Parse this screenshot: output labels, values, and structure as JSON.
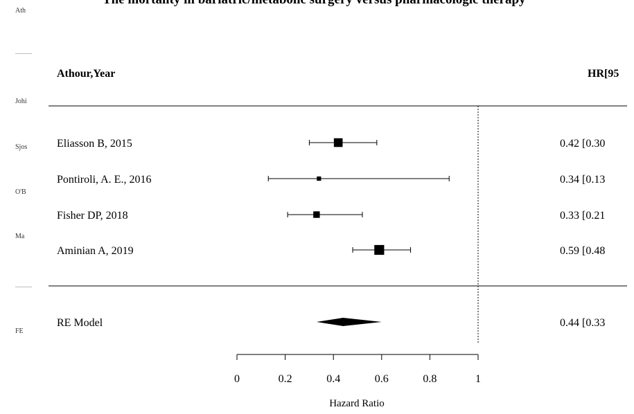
{
  "left_panel": {
    "labels": [
      "Ath",
      "Johi",
      "Sjos",
      "O'B",
      "Ma",
      "FE"
    ]
  },
  "chart_data": {
    "type": "forest",
    "title": "The mortality in bariatric/metabolic surgery versus pharmacologic therapy",
    "col_study_header": "Athour,Year",
    "col_effect_header": "HR[95",
    "xlabel": "Hazard Ratio",
    "xlim": [
      0,
      1
    ],
    "xticks": [
      0,
      0.2,
      0.4,
      0.6,
      0.8,
      1
    ],
    "xtick_labels": [
      "0",
      "0.2",
      "0.4",
      "0.6",
      "0.8",
      "1"
    ],
    "reference_line": 1,
    "studies": [
      {
        "label": "Eliasson B, 2015",
        "hr": 0.42,
        "lower": 0.3,
        "upper": 0.58,
        "effect_text": "0.42 [0.30",
        "weight": 3
      },
      {
        "label": "Pontiroli, A. E., 2016",
        "hr": 0.34,
        "lower": 0.13,
        "upper": 0.88,
        "effect_text": "0.34 [0.13",
        "weight": 1
      },
      {
        "label": "Fisher DP, 2018",
        "hr": 0.33,
        "lower": 0.21,
        "upper": 0.52,
        "effect_text": "0.33 [0.21",
        "weight": 2
      },
      {
        "label": "Aminian A, 2019",
        "hr": 0.59,
        "lower": 0.48,
        "upper": 0.72,
        "effect_text": "0.59 [0.48",
        "weight": 3.5
      }
    ],
    "summary": {
      "label": "RE Model",
      "hr": 0.44,
      "lower": 0.33,
      "upper": 0.6,
      "effect_text": "0.44 [0.33"
    }
  }
}
